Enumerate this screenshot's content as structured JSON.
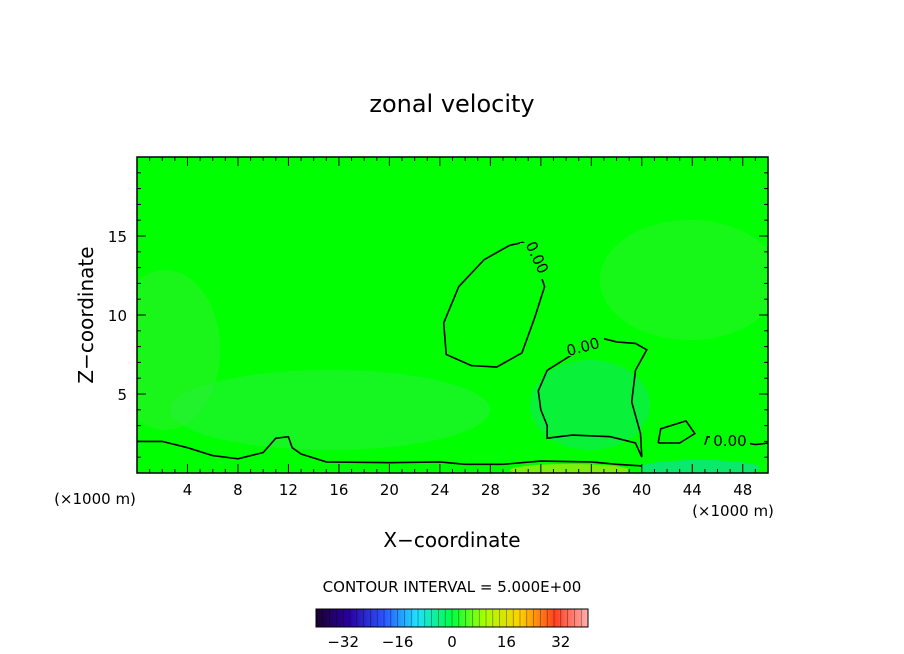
{
  "chart_data": {
    "type": "heatmap",
    "title": "zonal velocity",
    "xlabel": "X−coordinate",
    "ylabel": "Z−coordinate",
    "x_unit_left": "(×1000 m)",
    "x_unit_right": "(×1000 m)",
    "xlim": [
      0,
      50
    ],
    "ylim": [
      0,
      20
    ],
    "xticks": [
      4,
      8,
      12,
      16,
      20,
      24,
      28,
      32,
      36,
      40,
      44,
      48
    ],
    "yticks": [
      5,
      10,
      15
    ],
    "contour_interval_text": "CONTOUR INTERVAL = 5.000E+00",
    "contour_labels": [
      "0.00",
      "0.00",
      "0.00"
    ],
    "colorbar": {
      "range": [
        -40,
        40
      ],
      "ticks": [
        -32,
        -16,
        0,
        16,
        32
      ],
      "tick_labels": [
        "−32",
        "−16",
        "0",
        "16",
        "32"
      ]
    },
    "colors": {
      "field_main": "#00ff00",
      "field_light": "#33ee33",
      "field_slightly_negative": "#22e855",
      "field_slightly_positive": "#66f020",
      "contour_line": "#000000"
    },
    "zero_contours": [
      [
        [
          0,
          2.0
        ],
        [
          2,
          2.0
        ],
        [
          4,
          1.6
        ],
        [
          6,
          1.1
        ],
        [
          8,
          0.9
        ],
        [
          10,
          1.3
        ],
        [
          11,
          2.2
        ],
        [
          12,
          2.3
        ],
        [
          12.3,
          1.6
        ],
        [
          13,
          1.2
        ],
        [
          15,
          0.7
        ],
        [
          20,
          0.65
        ],
        [
          24,
          0.7
        ],
        [
          26,
          0.55
        ],
        [
          29,
          0.55
        ],
        [
          32,
          0.75
        ],
        [
          36,
          0.7
        ],
        [
          38,
          0.55
        ],
        [
          40,
          0.45
        ]
      ],
      [
        [
          30.6,
          14.6
        ],
        [
          29.5,
          14.4
        ],
        [
          27.5,
          13.5
        ],
        [
          25.5,
          11.8
        ],
        [
          24.3,
          9.5
        ],
        [
          24.5,
          7.5
        ],
        [
          26.5,
          6.8
        ],
        [
          28.5,
          6.7
        ],
        [
          30.5,
          7.6
        ],
        [
          31.5,
          9.8
        ],
        [
          32.3,
          11.8
        ],
        [
          31.7,
          13.2
        ],
        [
          30.6,
          14.6
        ]
      ],
      [
        [
          40,
          1.0
        ],
        [
          39.9,
          2.5
        ],
        [
          39.2,
          4.5
        ],
        [
          39.5,
          6.5
        ],
        [
          40.4,
          7.8
        ],
        [
          39.5,
          8.2
        ],
        [
          38,
          8.3
        ],
        [
          37,
          8.5
        ],
        [
          34.5,
          7.5
        ],
        [
          32.5,
          6.5
        ],
        [
          31.8,
          5.2
        ],
        [
          32,
          4.0
        ],
        [
          32.5,
          3.0
        ],
        [
          32.5,
          2.2
        ],
        [
          34.5,
          2.4
        ],
        [
          37.5,
          2.3
        ],
        [
          39.5,
          1.9
        ],
        [
          40,
          1.0
        ]
      ],
      [
        [
          41.3,
          1.9
        ],
        [
          41.5,
          2.8
        ],
        [
          43.5,
          3.3
        ],
        [
          44.2,
          2.5
        ],
        [
          43.0,
          1.9
        ],
        [
          41.3,
          1.9
        ]
      ],
      [
        [
          45,
          1.8
        ],
        [
          45.2,
          2.3
        ],
        [
          47,
          2.1
        ],
        [
          49,
          1.8
        ],
        [
          50,
          1.9
        ]
      ]
    ]
  }
}
